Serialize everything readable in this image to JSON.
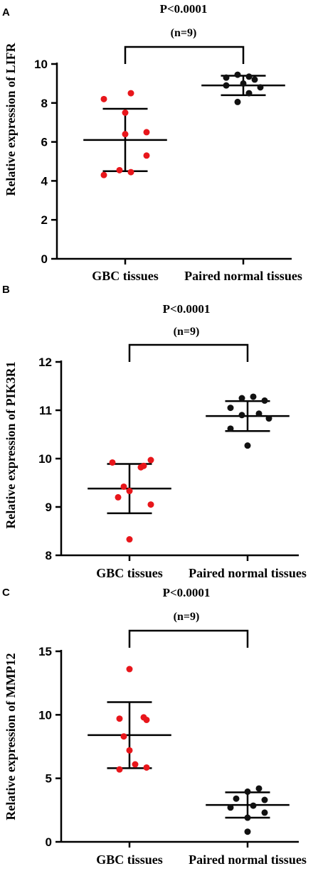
{
  "chart_data": [
    {
      "panel_label": "A",
      "type": "scatter",
      "pvalue_text": "P<0.0001",
      "n_text": "(n=9)",
      "ylabel": "Relative expression of LIFR",
      "xlabel": "",
      "categories": [
        "GBC tissues",
        "Paired normal tissues"
      ],
      "ylim": [
        0,
        10
      ],
      "yticks": [
        0,
        2,
        4,
        6,
        8,
        10
      ],
      "grid": false,
      "series": [
        {
          "category": "GBC tissues",
          "color": "#e8161b",
          "points": [
            4.3,
            4.45,
            4.55,
            5.3,
            6.4,
            6.5,
            7.5,
            8.2,
            8.5
          ],
          "mean": 6.1,
          "sd_low": 4.5,
          "sd_high": 7.7
        },
        {
          "category": "Paired normal tissues",
          "color": "#111111",
          "points": [
            8.05,
            8.5,
            8.8,
            8.9,
            9.0,
            9.2,
            9.3,
            9.35,
            9.45
          ],
          "mean": 8.9,
          "sd_low": 8.4,
          "sd_high": 9.4
        }
      ]
    },
    {
      "panel_label": "B",
      "type": "scatter",
      "pvalue_text": "P<0.0001",
      "n_text": "(n=9)",
      "ylabel": "Relative expression of PIK3R1",
      "xlabel": "",
      "categories": [
        "GBC tissues",
        "Paired normal tissues"
      ],
      "ylim": [
        8,
        12
      ],
      "yticks": [
        8,
        9,
        10,
        11,
        12
      ],
      "grid": false,
      "series": [
        {
          "category": "GBC tissues",
          "color": "#e8161b",
          "points": [
            8.33,
            9.05,
            9.2,
            9.33,
            9.42,
            9.82,
            9.92,
            9.97,
            9.85
          ],
          "mean": 9.38,
          "sd_low": 8.87,
          "sd_high": 9.89
        },
        {
          "category": "Paired normal tissues",
          "color": "#111111",
          "points": [
            10.27,
            10.62,
            10.83,
            10.9,
            10.93,
            11.05,
            11.2,
            11.25,
            11.28
          ],
          "mean": 10.88,
          "sd_low": 10.57,
          "sd_high": 11.19
        }
      ]
    },
    {
      "panel_label": "C",
      "type": "scatter",
      "pvalue_text": "P<0.0001",
      "n_text": "(n=9)",
      "ylabel": "Relative expression of MMP12",
      "xlabel": "",
      "categories": [
        "GBC tissues",
        "Paired normal tissues"
      ],
      "ylim": [
        0,
        15
      ],
      "yticks": [
        0,
        5,
        10,
        15
      ],
      "grid": false,
      "series": [
        {
          "category": "GBC tissues",
          "color": "#e8161b",
          "points": [
            5.7,
            5.85,
            6.1,
            7.2,
            8.3,
            9.6,
            9.7,
            9.8,
            13.6
          ],
          "mean": 8.4,
          "sd_low": 5.8,
          "sd_high": 11.0
        },
        {
          "category": "Paired normal tissues",
          "color": "#111111",
          "points": [
            0.8,
            1.9,
            2.3,
            2.7,
            2.85,
            3.3,
            3.4,
            3.95,
            4.2
          ],
          "mean": 2.9,
          "sd_low": 1.9,
          "sd_high": 3.9
        }
      ]
    }
  ]
}
